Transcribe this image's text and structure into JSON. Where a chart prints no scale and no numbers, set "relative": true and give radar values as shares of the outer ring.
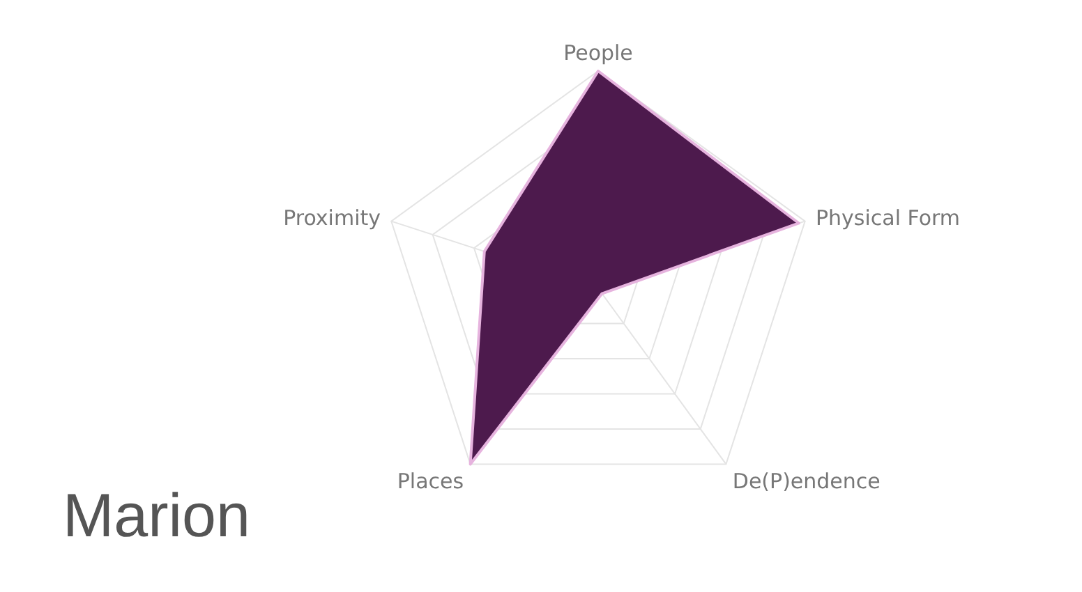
{
  "chart_data": {
    "type": "radar",
    "title": "Marion",
    "relative": true,
    "grid": true,
    "categories": [
      "People",
      "Physical Form",
      "De(P)endence",
      "Places",
      "Proximity"
    ],
    "series": [
      {
        "color": "#4d1a4d",
        "values": [
          1,
          0.97,
          0.03,
          1,
          0.55
        ]
      }
    ]
  }
}
